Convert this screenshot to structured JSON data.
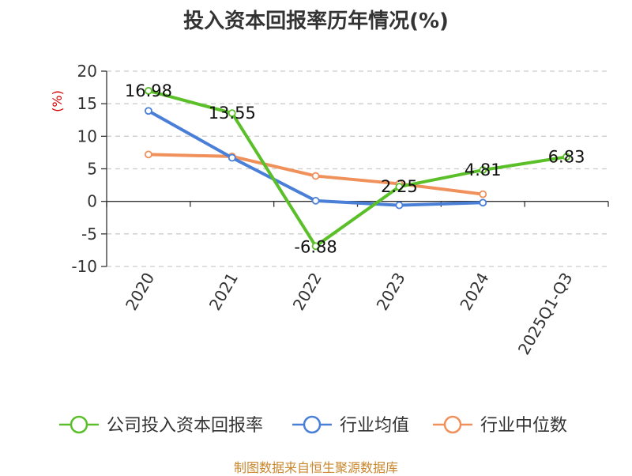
{
  "chart_data": {
    "type": "line",
    "title": "投入资本回报率历年情况(%)",
    "ylabel": "(%)",
    "xlabel": "",
    "ylim": [
      -10,
      20
    ],
    "yticks": [
      20,
      15,
      10,
      5,
      0,
      -5,
      -10
    ],
    "categories": [
      "2020",
      "2021",
      "2022",
      "2023",
      "2024",
      "2025Q1-Q3"
    ],
    "series": [
      {
        "name": "公司投入资本回报率",
        "color": "#5bbf2a",
        "values": [
          16.98,
          13.55,
          -6.88,
          2.25,
          4.81,
          6.83
        ],
        "labels": [
          "16.98",
          "13.55",
          "-6.88",
          "2.25",
          "4.81",
          "6.83"
        ]
      },
      {
        "name": "行业均值",
        "color": "#4a7fd8",
        "values": [
          13.9,
          6.7,
          0.1,
          -0.6,
          -0.2,
          null
        ]
      },
      {
        "name": "行业中位数",
        "color": "#f0905a",
        "values": [
          7.2,
          6.9,
          3.9,
          2.7,
          1.1,
          null
        ]
      }
    ],
    "legend": "bottom",
    "grid": true
  },
  "footer": {
    "source": "制图数据来自恒生聚源数据库"
  }
}
